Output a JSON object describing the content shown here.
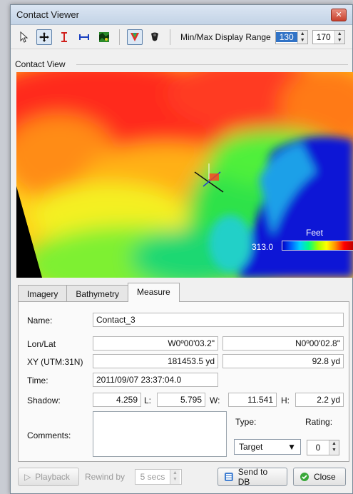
{
  "window": {
    "title": "Contact Viewer"
  },
  "toolbar": {
    "tools": [
      {
        "icon": "pointer-icon"
      },
      {
        "icon": "pan-cross-icon"
      },
      {
        "icon": "vertical-measure-icon"
      },
      {
        "icon": "horizontal-measure-icon"
      },
      {
        "icon": "texture-map-icon"
      },
      {
        "icon": "palette-icon"
      },
      {
        "icon": "shadow-shape-icon"
      }
    ],
    "range_label": "Min/Max Display Range",
    "range_min": "130",
    "range_max": "170"
  },
  "view": {
    "group_label": "Contact View",
    "scale_unit": "Feet",
    "scale_min": "313.0",
    "colors": {
      "blue": "#0a14d6",
      "green": "#22e24a",
      "yellow": "#f2f21a",
      "orange": "#ff8a14",
      "red": "#ff1e1e"
    }
  },
  "tabs": [
    {
      "label": "Imagery",
      "active": false
    },
    {
      "label": "Bathymetry",
      "active": false
    },
    {
      "label": "Measure",
      "active": true
    }
  ],
  "measure": {
    "name_label": "Name:",
    "name_value": "Contact_3",
    "lonlat_label": "Lon/Lat",
    "lon_value": "W0º00'03.2\"",
    "lat_value": "N0º00'02.8\"",
    "xy_label": "XY (UTM:31N)",
    "x_value": "181453.5 yd",
    "y_value": "92.8 yd",
    "time_label": "Time:",
    "time_value": "2011/09/07 23:37:04.0",
    "shadow_label": "Shadow:",
    "shadow_value": "4.259",
    "l_label": "L:",
    "l_value": "5.795",
    "w_label": "W:",
    "w_value": "11.541",
    "h_label": "H:",
    "h_value": "2.2 yd",
    "comments_label": "Comments:",
    "comments_value": "",
    "type_label": "Type:",
    "type_value": "Target",
    "rating_label": "Rating:",
    "rating_value": "0"
  },
  "footer": {
    "playback_label": "Playback",
    "rewind_label": "Rewind by",
    "rewind_value": "5 secs",
    "send_label": "Send to DB",
    "close_label": "Close"
  }
}
